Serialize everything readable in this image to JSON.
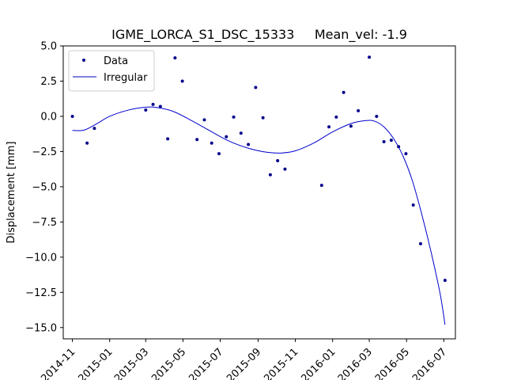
{
  "chart_data": {
    "type": "scatter",
    "title": "IGME_LORCA_S1_DSC_15333     Mean_vel: -1.9",
    "xlabel": "",
    "ylabel": "Displacement [mm]",
    "xlim": [
      "2014-10-17",
      "2016-07-20"
    ],
    "ylim": [
      -15.8,
      5.0
    ],
    "x_ticks": [
      "2014-11-01",
      "2015-01-01",
      "2015-03-01",
      "2015-05-01",
      "2015-07-01",
      "2015-09-01",
      "2015-11-01",
      "2016-01-01",
      "2016-03-01",
      "2016-05-01",
      "2016-07-01"
    ],
    "x_tick_labels": [
      "2014-11",
      "2015-01",
      "2015-03",
      "2015-05",
      "2015-07",
      "2015-09",
      "2015-11",
      "2016-01",
      "2016-03",
      "2016-05",
      "2016-07"
    ],
    "y_ticks": [
      5.0,
      2.5,
      0.0,
      -2.5,
      -5.0,
      -7.5,
      -10.0,
      -12.5,
      -15.0
    ],
    "y_tick_labels": [
      "5.0",
      "2.5",
      "0.0",
      "−2.5",
      "−5.0",
      "−7.5",
      "−10.0",
      "−12.5",
      "−15.0"
    ],
    "grid": false,
    "legend": {
      "placement": "top-left",
      "entries": [
        {
          "label": "Data",
          "marker": "dot",
          "color": "#00008b"
        },
        {
          "label": "Irregular",
          "marker": "line",
          "color": "#0000cd"
        }
      ]
    },
    "series": [
      {
        "name": "Data",
        "kind": "scatter",
        "color": "#00008b",
        "points": [
          {
            "x": "2014-11-01",
            "y": 0.0
          },
          {
            "x": "2014-11-25",
            "y": -1.9
          },
          {
            "x": "2014-12-07",
            "y": -0.85
          },
          {
            "x": "2015-03-01",
            "y": 0.45
          },
          {
            "x": "2015-03-13",
            "y": 0.85
          },
          {
            "x": "2015-03-25",
            "y": 0.7
          },
          {
            "x": "2015-04-06",
            "y": -1.6
          },
          {
            "x": "2015-04-18",
            "y": 4.15
          },
          {
            "x": "2015-04-30",
            "y": 2.5
          },
          {
            "x": "2015-05-24",
            "y": -1.65
          },
          {
            "x": "2015-06-05",
            "y": -0.25
          },
          {
            "x": "2015-06-17",
            "y": -1.9
          },
          {
            "x": "2015-06-29",
            "y": -2.65
          },
          {
            "x": "2015-07-11",
            "y": -1.45
          },
          {
            "x": "2015-07-23",
            "y": -0.05
          },
          {
            "x": "2015-08-04",
            "y": -1.2
          },
          {
            "x": "2015-08-16",
            "y": -2.0
          },
          {
            "x": "2015-08-28",
            "y": 2.05
          },
          {
            "x": "2015-09-09",
            "y": -0.1
          },
          {
            "x": "2015-09-21",
            "y": -4.15
          },
          {
            "x": "2015-10-03",
            "y": -3.15
          },
          {
            "x": "2015-10-15",
            "y": -3.75
          },
          {
            "x": "2015-12-14",
            "y": -4.9
          },
          {
            "x": "2015-12-26",
            "y": -0.75
          },
          {
            "x": "2016-01-07",
            "y": -0.05
          },
          {
            "x": "2016-01-19",
            "y": 1.7
          },
          {
            "x": "2016-01-31",
            "y": -0.7
          },
          {
            "x": "2016-02-12",
            "y": 0.4
          },
          {
            "x": "2016-03-01",
            "y": 4.2
          },
          {
            "x": "2016-03-13",
            "y": 0.0
          },
          {
            "x": "2016-03-25",
            "y": -1.8
          },
          {
            "x": "2016-04-06",
            "y": -1.7
          },
          {
            "x": "2016-04-18",
            "y": -2.15
          },
          {
            "x": "2016-04-30",
            "y": -2.65
          },
          {
            "x": "2016-05-12",
            "y": -6.3
          },
          {
            "x": "2016-05-24",
            "y": -9.05
          },
          {
            "x": "2016-07-03",
            "y": -11.65
          }
        ]
      },
      {
        "name": "Irregular",
        "kind": "line",
        "color": "#0000cd",
        "points": [
          {
            "x": "2014-11-01",
            "y": -1.0
          },
          {
            "x": "2014-11-20",
            "y": -0.98
          },
          {
            "x": "2014-12-10",
            "y": -0.55
          },
          {
            "x": "2015-01-01",
            "y": 0.0
          },
          {
            "x": "2015-02-01",
            "y": 0.45
          },
          {
            "x": "2015-03-01",
            "y": 0.65
          },
          {
            "x": "2015-03-20",
            "y": 0.62
          },
          {
            "x": "2015-04-15",
            "y": 0.35
          },
          {
            "x": "2015-05-15",
            "y": -0.3
          },
          {
            "x": "2015-06-15",
            "y": -1.05
          },
          {
            "x": "2015-07-15",
            "y": -1.75
          },
          {
            "x": "2015-08-15",
            "y": -2.25
          },
          {
            "x": "2015-09-15",
            "y": -2.55
          },
          {
            "x": "2015-10-10",
            "y": -2.6
          },
          {
            "x": "2015-11-01",
            "y": -2.45
          },
          {
            "x": "2015-12-01",
            "y": -1.9
          },
          {
            "x": "2016-01-01",
            "y": -1.1
          },
          {
            "x": "2016-02-01",
            "y": -0.5
          },
          {
            "x": "2016-02-25",
            "y": -0.3
          },
          {
            "x": "2016-03-10",
            "y": -0.35
          },
          {
            "x": "2016-03-25",
            "y": -0.75
          },
          {
            "x": "2016-04-10",
            "y": -1.6
          },
          {
            "x": "2016-04-25",
            "y": -2.8
          },
          {
            "x": "2016-05-10",
            "y": -4.5
          },
          {
            "x": "2016-05-25",
            "y": -6.8
          },
          {
            "x": "2016-06-10",
            "y": -9.6
          },
          {
            "x": "2016-06-25",
            "y": -12.6
          },
          {
            "x": "2016-07-03",
            "y": -14.8
          }
        ]
      }
    ]
  }
}
